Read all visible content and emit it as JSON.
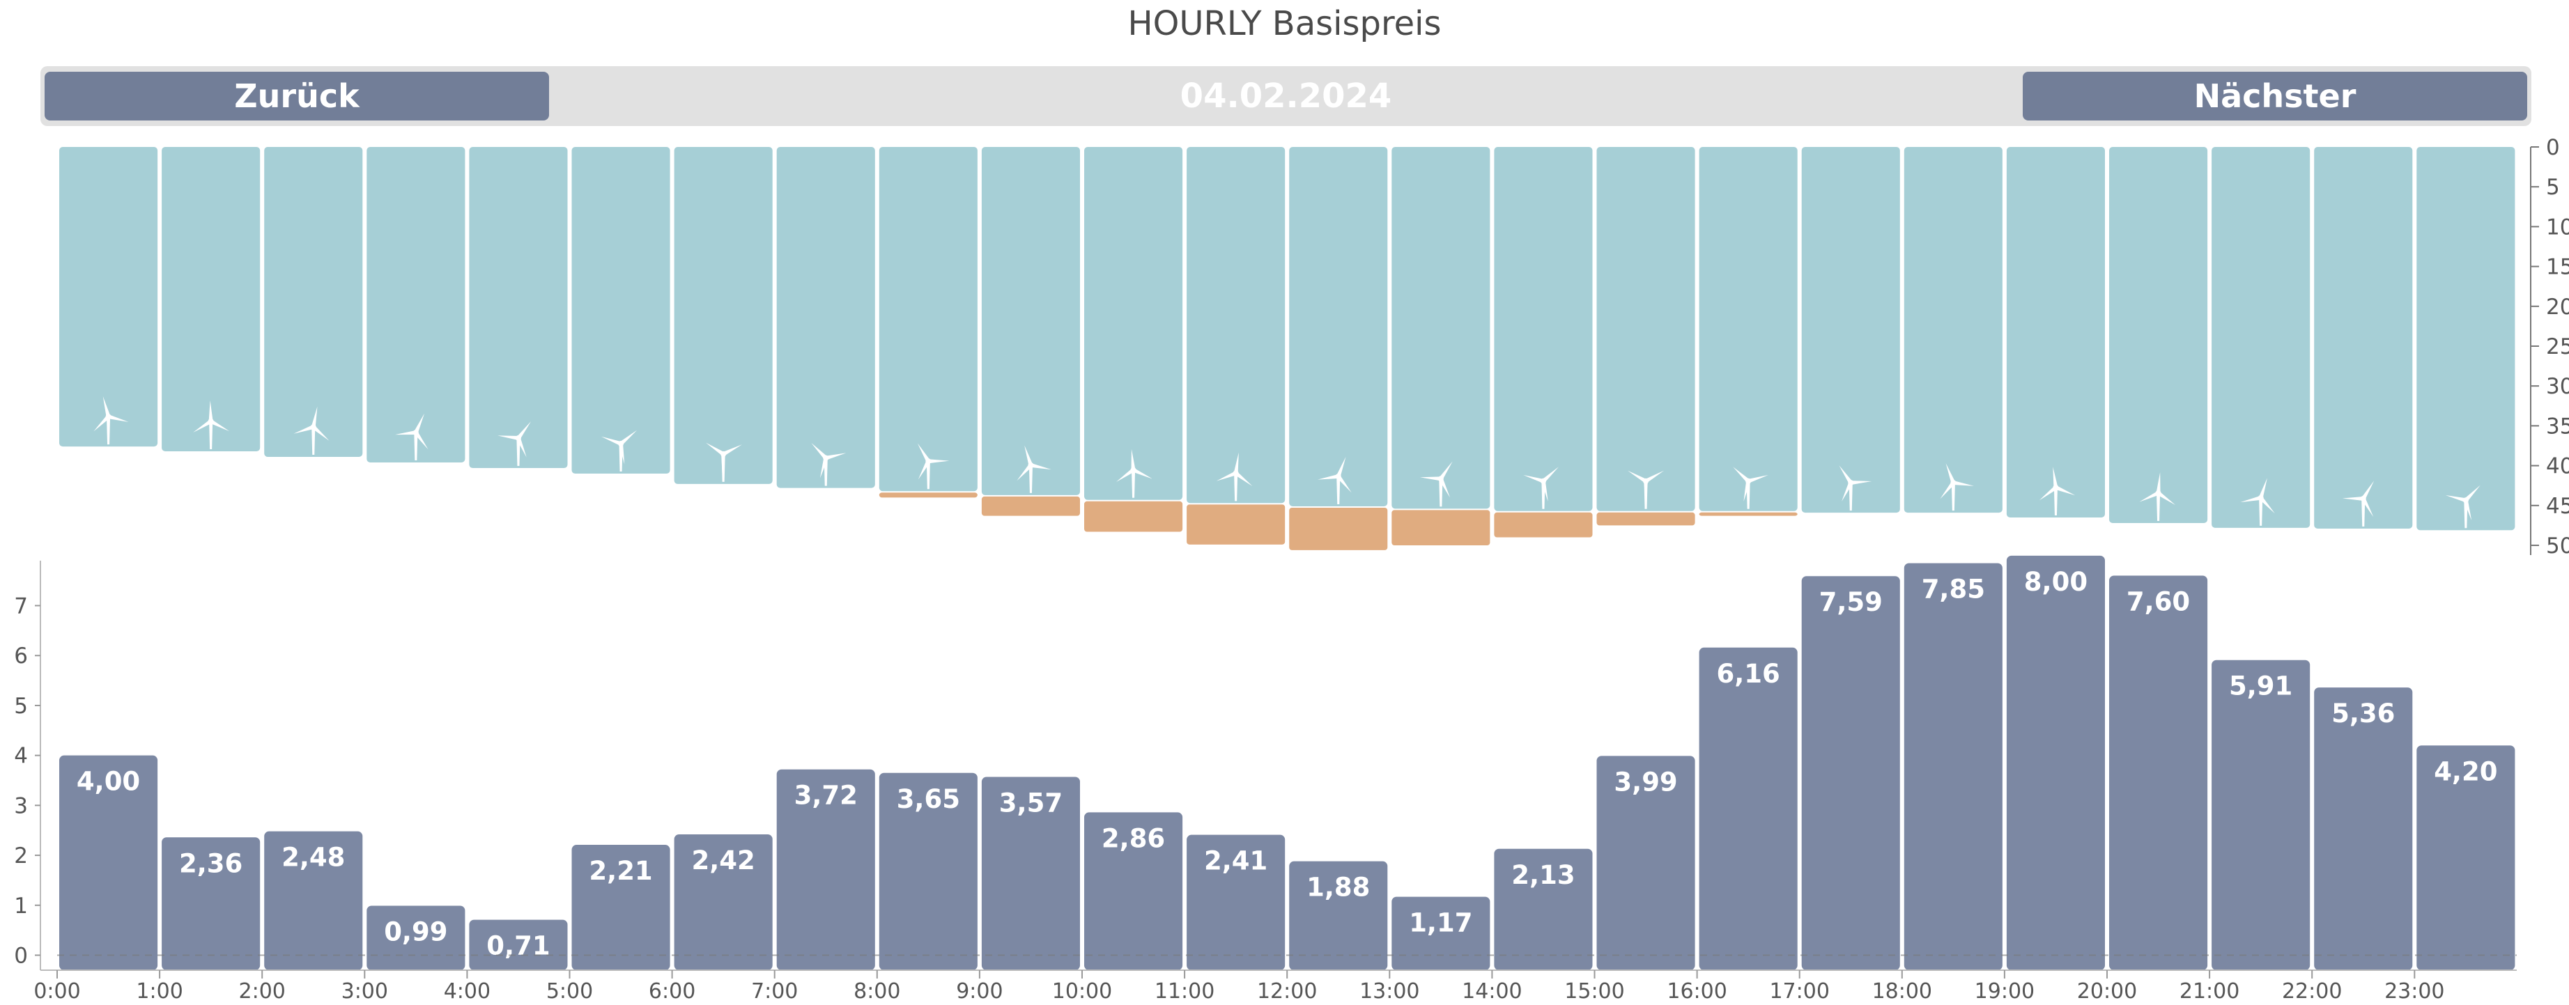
{
  "title": "HOURLY Basispreis",
  "nav": {
    "back_label": "Zurück",
    "date": "04.02.2024",
    "next_label": "Nächster"
  },
  "colors": {
    "wind": "#a6cfd6",
    "deficit": "#e0ac80",
    "price": "#7c88a3",
    "nav_button": "#727e98",
    "nav_bar": "#e1e1e1"
  },
  "chart_data": [
    {
      "type": "bar",
      "title": "",
      "ylim": [
        0,
        50
      ],
      "y_inverted": true,
      "y_ticks": [
        "0",
        "5",
        "10",
        "15",
        "20",
        "25",
        "30",
        "35",
        "40",
        "45",
        "50"
      ],
      "categories": [
        "0:00",
        "1:00",
        "2:00",
        "3:00",
        "4:00",
        "5:00",
        "6:00",
        "7:00",
        "8:00",
        "9:00",
        "10:00",
        "11:00",
        "12:00",
        "13:00",
        "14:00",
        "15:00",
        "16:00",
        "17:00",
        "18:00",
        "19:00",
        "20:00",
        "21:00",
        "22:00",
        "23:00"
      ],
      "series": [
        {
          "icon": "wind-turbine-icon",
          "values": [
            37.6,
            38.2,
            38.9,
            39.6,
            40.3,
            41.0,
            42.3,
            42.8,
            43.2,
            43.7,
            44.3,
            44.7,
            45.1,
            45.4,
            45.7,
            45.7,
            45.7,
            45.9,
            45.9,
            46.5,
            47.2,
            47.8,
            47.9,
            48.1
          ]
        },
        {
          "stacked": true,
          "values": [
            0,
            0,
            0,
            0,
            0,
            0,
            0,
            0,
            0.8,
            2.6,
            4.0,
            5.2,
            5.5,
            4.6,
            3.3,
            1.8,
            0.6,
            0,
            0,
            0,
            0,
            0,
            0,
            0
          ]
        }
      ]
    },
    {
      "type": "bar",
      "title": "",
      "ylim": [
        -0.3,
        7.9
      ],
      "y_ticks": [
        "0",
        "1",
        "2",
        "3",
        "4",
        "5",
        "6",
        "7"
      ],
      "categories": [
        "0:00",
        "1:00",
        "2:00",
        "3:00",
        "4:00",
        "5:00",
        "6:00",
        "7:00",
        "8:00",
        "9:00",
        "10:00",
        "11:00",
        "12:00",
        "13:00",
        "14:00",
        "15:00",
        "16:00",
        "17:00",
        "18:00",
        "19:00",
        "20:00",
        "21:00",
        "22:00",
        "23:00"
      ],
      "series": [
        {
          "values": [
            4.0,
            2.36,
            2.48,
            0.99,
            0.71,
            2.21,
            2.42,
            3.72,
            3.65,
            3.57,
            2.86,
            2.41,
            1.88,
            1.17,
            2.13,
            3.99,
            6.16,
            7.59,
            7.85,
            8.0,
            7.6,
            5.91,
            5.36,
            4.2
          ],
          "labels": [
            "4,00",
            "2,36",
            "2,48",
            "0,99",
            "0,71",
            "2,21",
            "2,42",
            "3,72",
            "3,65",
            "3,57",
            "2,86",
            "2,41",
            "1,88",
            "1,17",
            "2,13",
            "3,99",
            "6,16",
            "7,59",
            "7,85",
            "8,00",
            "7,60",
            "5,91",
            "5,36",
            "4,20"
          ]
        }
      ]
    }
  ]
}
